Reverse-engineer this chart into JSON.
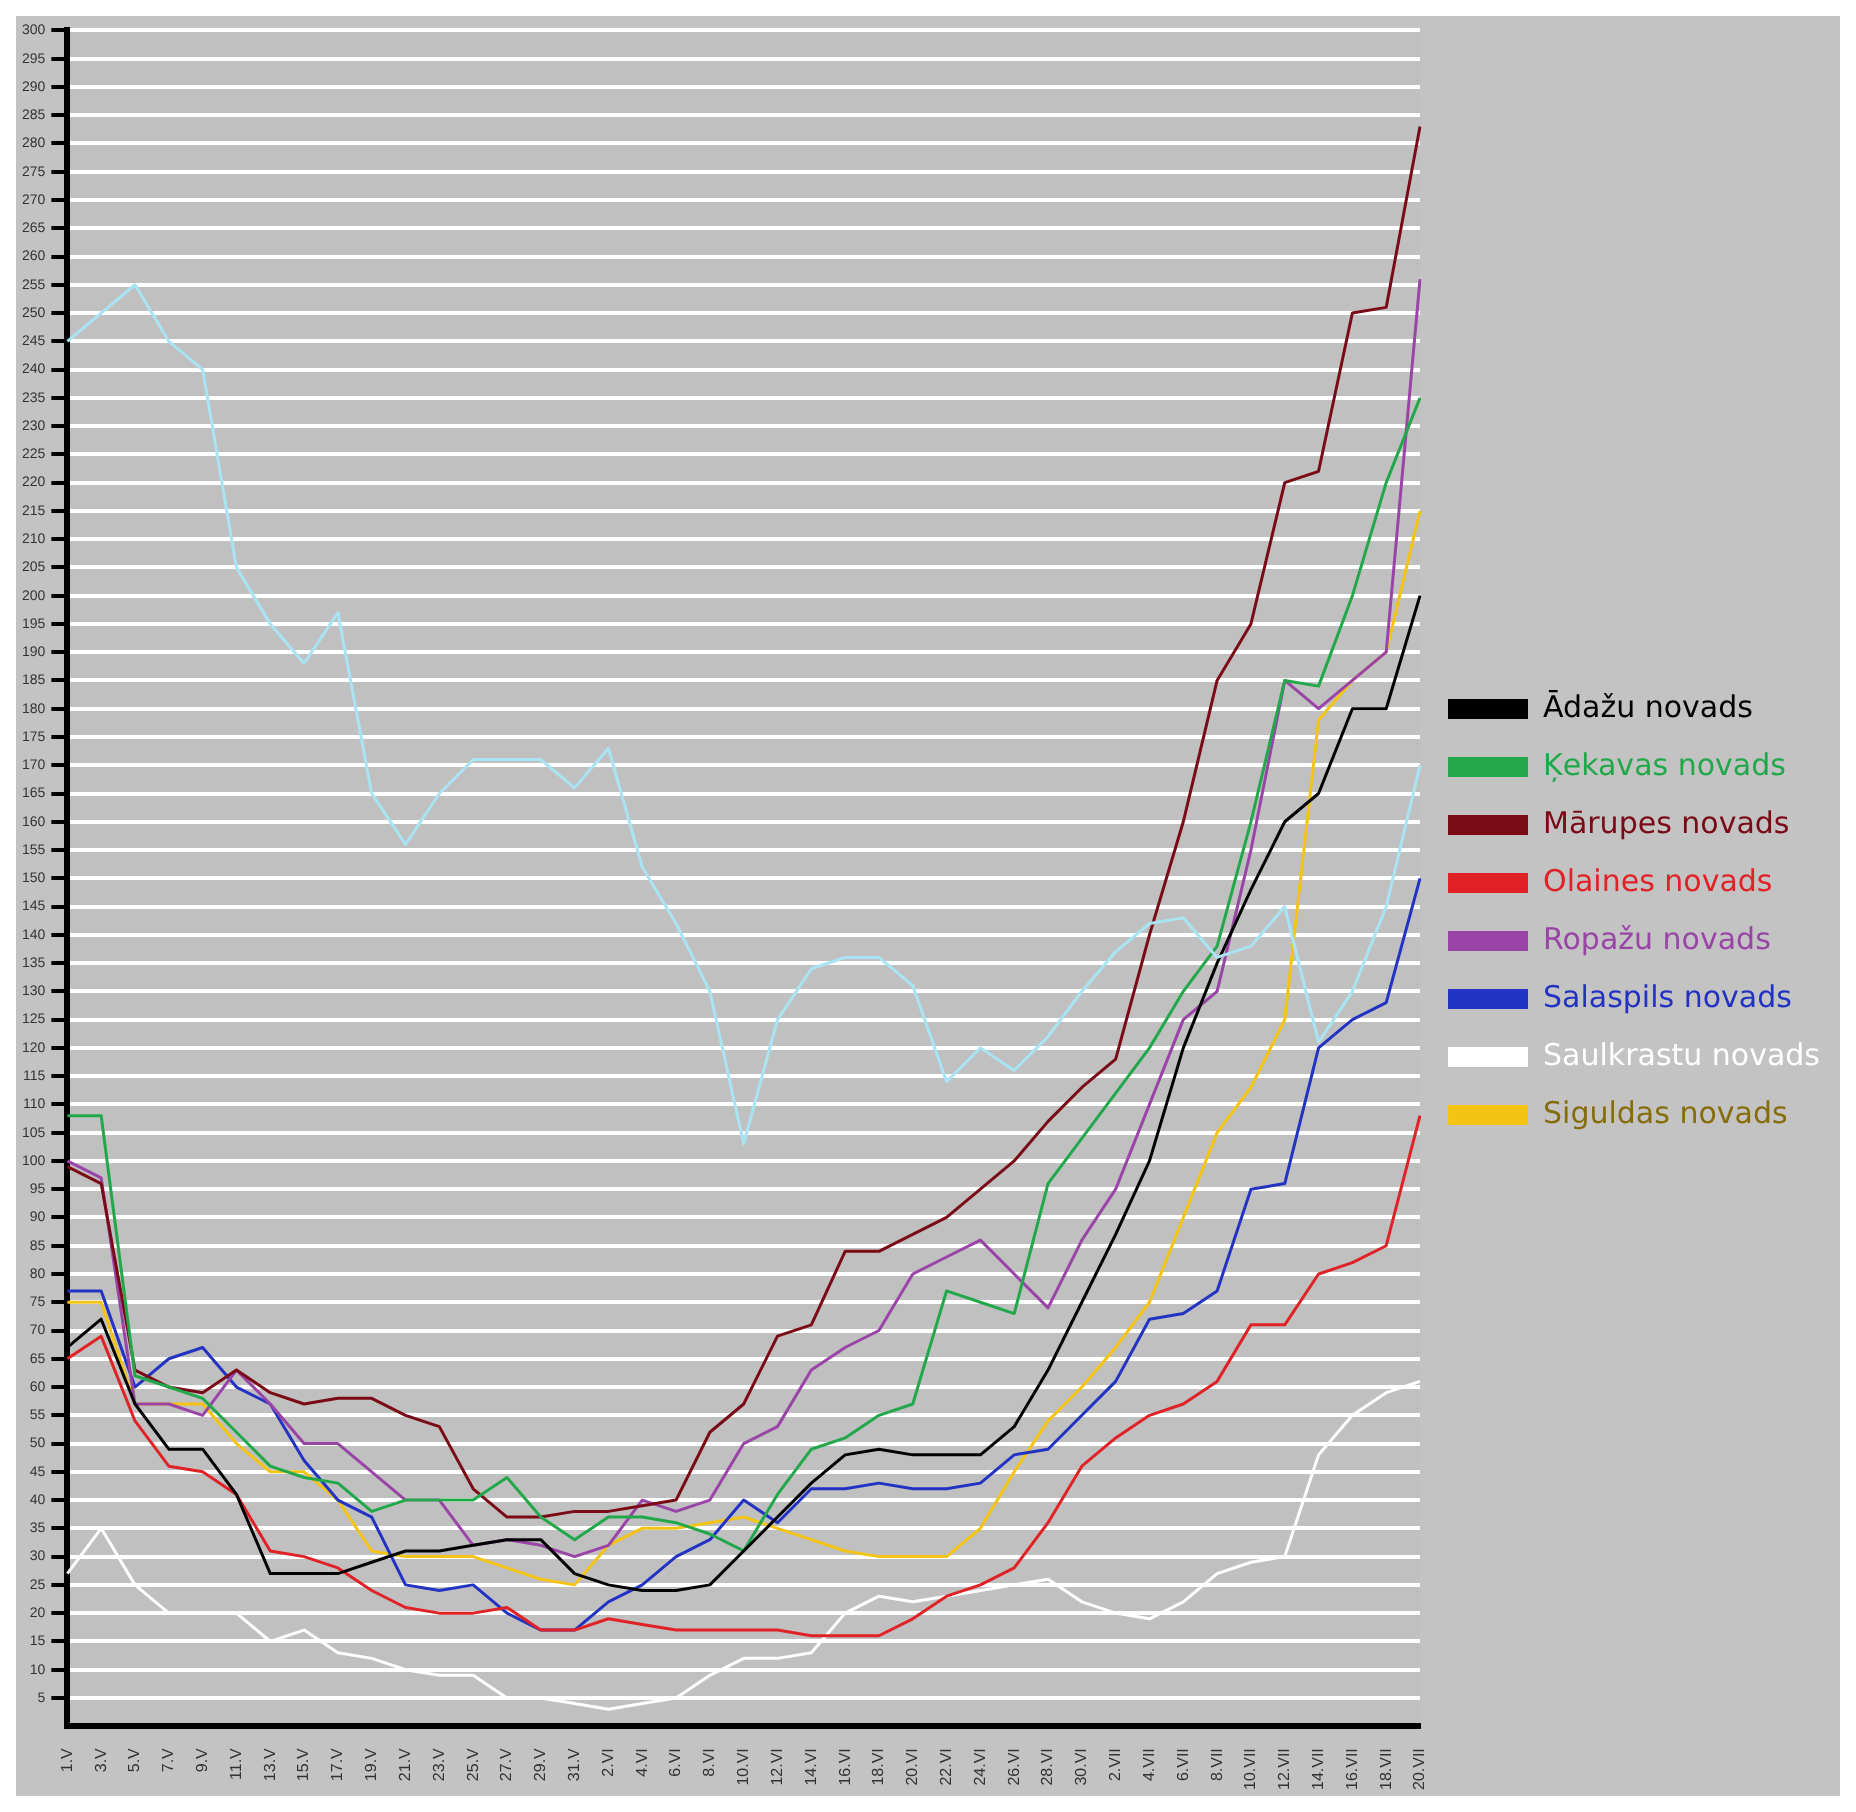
{
  "chart_data": {
    "type": "line",
    "categories": [
      "1.V",
      "3.V",
      "5.V",
      "7.V",
      "9.V",
      "11.V",
      "13.V",
      "15.V",
      "17.V",
      "19.V",
      "21.V",
      "23.V",
      "25.V",
      "27.V",
      "29.V",
      "31.V",
      "2.VI",
      "4.VI",
      "6.VI",
      "8.VI",
      "10.VI",
      "12.VI",
      "14.VI",
      "16.VI",
      "18.VI",
      "20.VI",
      "22.VI",
      "24.VI",
      "26.VI",
      "28.VI",
      "30.VI",
      "2.VII",
      "4.VII",
      "6.VII",
      "8.VII",
      "10.VII",
      "12.VII",
      "14.VII",
      "16.VII",
      "18.VII",
      "20.VII"
    ],
    "series": [
      {
        "color": "#a8e4f4",
        "values": [
          245,
          250,
          255,
          245,
          240,
          205,
          195,
          188,
          197,
          165,
          156,
          165,
          171,
          171,
          171,
          166,
          173,
          152,
          142,
          130,
          103,
          125,
          134,
          136,
          136,
          131,
          114,
          120,
          116,
          122,
          130,
          137,
          142,
          143,
          136,
          138,
          145,
          121,
          130,
          145,
          170
        ]
      },
      {
        "name": "Ādažu novads",
        "color": "#000000",
        "values": [
          67,
          72,
          57,
          49,
          49,
          41,
          27,
          27,
          27,
          29,
          31,
          31,
          32,
          33,
          33,
          27,
          25,
          24,
          24,
          25,
          31,
          37,
          43,
          48,
          49,
          48,
          48,
          48,
          53,
          63,
          75,
          87,
          100,
          120,
          135,
          148,
          160,
          165,
          180,
          180,
          200
        ]
      },
      {
        "name": "Ķekavas novads",
        "color": "#22a84a",
        "values": [
          108,
          108,
          62,
          60,
          58,
          52,
          46,
          44,
          43,
          38,
          40,
          40,
          40,
          44,
          37,
          33,
          37,
          37,
          36,
          34,
          31,
          41,
          49,
          51,
          55,
          57,
          77,
          75,
          73,
          96,
          104,
          112,
          120,
          130,
          138,
          160,
          185,
          184,
          200,
          220,
          235
        ]
      },
      {
        "name": "Mārupes novads",
        "color": "#7a0a16",
        "values": [
          99,
          96,
          63,
          60,
          59,
          63,
          59,
          57,
          58,
          58,
          55,
          53,
          42,
          37,
          37,
          38,
          38,
          39,
          40,
          52,
          57,
          69,
          71,
          84,
          84,
          87,
          90,
          95,
          100,
          107,
          113,
          118,
          140,
          160,
          185,
          195,
          220,
          222,
          250,
          251,
          283
        ]
      },
      {
        "name": "Olaines novads",
        "color": "#e02226",
        "values": [
          65,
          69,
          54,
          46,
          45,
          41,
          31,
          30,
          28,
          24,
          21,
          20,
          20,
          21,
          17,
          17,
          19,
          18,
          17,
          17,
          17,
          17,
          16,
          16,
          16,
          19,
          23,
          25,
          28,
          36,
          46,
          51,
          55,
          57,
          61,
          71,
          71,
          80,
          82,
          85,
          108
        ]
      },
      {
        "name": "Ropažu novads",
        "color": "#9a44a8",
        "values": [
          100,
          97,
          57,
          57,
          55,
          63,
          57,
          50,
          50,
          45,
          40,
          40,
          32,
          33,
          32,
          30,
          32,
          40,
          38,
          40,
          50,
          53,
          63,
          67,
          70,
          80,
          83,
          86,
          80,
          74,
          86,
          95,
          110,
          125,
          130,
          155,
          185,
          180,
          185,
          190,
          256
        ]
      },
      {
        "name": "Salaspils novads",
        "color": "#2233c4",
        "values": [
          77,
          77,
          60,
          65,
          67,
          60,
          57,
          47,
          40,
          37,
          25,
          24,
          25,
          20,
          17,
          17,
          22,
          25,
          30,
          33,
          40,
          36,
          42,
          42,
          43,
          42,
          42,
          43,
          48,
          49,
          55,
          61,
          72,
          73,
          77,
          95,
          96,
          120,
          125,
          128,
          150
        ]
      },
      {
        "name": "Saulkrastu novads",
        "color": "#ffffff",
        "values": [
          27,
          35,
          25,
          20,
          20,
          20,
          15,
          17,
          13,
          12,
          10,
          9,
          9,
          5,
          5,
          4,
          3,
          4,
          5,
          9,
          12,
          12,
          13,
          20,
          23,
          22,
          23,
          24,
          25,
          26,
          22,
          20,
          19,
          22,
          27,
          29,
          30,
          48,
          55,
          59,
          61
        ]
      },
      {
        "name": "Siguldas novads",
        "color": "#f4c414",
        "values": [
          75,
          75,
          57,
          57,
          57,
          50,
          45,
          45,
          40,
          31,
          30,
          30,
          30,
          28,
          26,
          25,
          32,
          35,
          35,
          36,
          37,
          35,
          33,
          31,
          30,
          30,
          30,
          35,
          45,
          54,
          60,
          67,
          75,
          90,
          105,
          113,
          125,
          178,
          185,
          190,
          215
        ]
      }
    ],
    "ylim": [
      0,
      300
    ],
    "yticks": [
      5,
      10,
      15,
      20,
      25,
      30,
      35,
      40,
      45,
      50,
      55,
      60,
      65,
      70,
      75,
      80,
      85,
      90,
      95,
      100,
      105,
      110,
      115,
      120,
      125,
      130,
      135,
      140,
      145,
      150,
      155,
      160,
      165,
      170,
      175,
      180,
      185,
      190,
      195,
      200,
      205,
      210,
      215,
      220,
      225,
      230,
      235,
      240,
      245,
      250,
      255,
      260,
      265,
      270,
      275,
      280,
      285,
      290,
      295,
      300
    ],
    "grid": "y",
    "legend": "right",
    "marker": "none",
    "line_style": "solid"
  }
}
